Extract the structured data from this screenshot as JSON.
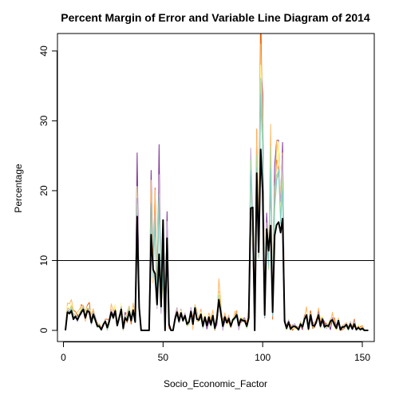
{
  "chart_data": {
    "type": "line",
    "title": "Percent Margin of Error and Variable Line Diagram of 2014",
    "xlabel": "Socio_Economic_Factor",
    "ylabel": "Percentage",
    "xlim": [
      -3,
      156
    ],
    "ylim": [
      -1.6,
      42.5
    ],
    "xticks": [
      0,
      50,
      100,
      150
    ],
    "yticks": [
      0,
      10,
      20,
      30,
      40
    ],
    "grid": false,
    "legend": "none",
    "reference_lines": [
      {
        "y": 10,
        "color": "#000000"
      }
    ],
    "main_color": "#000000",
    "series": [
      {
        "color": "#7B3294",
        "values": [
          0,
          3,
          2.6,
          3.1,
          1.8,
          2.2,
          2,
          2.5,
          2.8,
          3.6,
          2.3,
          3.2,
          2.6,
          1.6,
          2.6,
          1.4,
          0.9,
          0.5,
          0.2,
          0.9,
          1.2,
          0.6,
          1.6,
          2.8,
          2.2,
          3.3,
          0.6,
          2.1,
          2.8,
          0.7,
          2.6,
          1.3,
          2.5,
          1.6,
          3,
          1.1,
          25.4,
          4,
          0,
          0,
          0,
          0,
          0,
          22.9,
          8.3,
          19,
          3.9,
          26.6,
          2.7,
          10.5,
          0,
          17,
          1.1,
          0,
          0,
          2,
          3.2,
          1.1,
          3,
          1.6,
          2.4,
          0.9,
          1.4,
          2.3,
          0.6,
          3.4,
          1.7,
          1.6,
          2.1,
          0.4,
          1.7,
          0.2,
          1.3,
          0.6,
          2.3,
          0.3,
          0.8,
          4,
          2.4,
          0.3,
          1.3,
          1.3,
          1.5,
          0.6,
          1.6,
          1.6,
          2.5,
          1.2,
          1.1,
          1.6,
          1.8,
          0.5,
          2.7,
          24.3,
          12.3,
          0.1,
          23.1,
          10.5,
          38.8,
          33.9,
          1.8,
          16.8,
          9.9,
          23.5,
          3.4,
          23.5,
          27.2,
          27.2,
          17.6,
          26.9,
          1.1,
          0.6,
          1.4,
          0,
          0.8,
          0.5,
          0.5,
          0.5,
          0.7,
          0.1,
          2.2,
          2,
          0.1,
          2.8,
          1.2,
          0.7,
          1,
          2.8,
          0.3,
          1.8,
          1.2,
          0.3,
          1,
          0.1,
          1.8,
          1.1,
          0.8,
          1.3,
          0.4,
          0.6,
          0.3,
          1,
          0.5,
          0.8,
          0.1,
          0.8,
          0.2,
          0.4,
          0.2,
          0.2,
          0,
          0,
          0
        ]
      },
      {
        "color": "#E66101",
        "values": [
          0,
          3.2,
          3.1,
          3.6,
          2.9,
          2.7,
          2.2,
          2.2,
          3.7,
          3.4,
          2.6,
          3.6,
          4,
          1.1,
          2.7,
          2,
          0.6,
          0.9,
          0.3,
          0.6,
          1.6,
          1.6,
          1.4,
          2.7,
          1.6,
          3,
          1.2,
          1.6,
          3.8,
          0,
          1.9,
          1.1,
          2.8,
          0.9,
          3.4,
          1.2,
          18.1,
          3.2,
          0,
          0,
          0,
          0,
          0,
          19.7,
          9.4,
          20.4,
          5,
          20.3,
          3.6,
          10.5,
          0,
          14.2,
          0.3,
          0,
          0,
          1.9,
          3.1,
          1.2,
          2.7,
          1.7,
          2,
          1.3,
          0.9,
          2.8,
          1.9,
          3.2,
          1.3,
          1.3,
          3,
          0.7,
          2.2,
          1.1,
          1.8,
          1.3,
          2.1,
          0,
          2,
          5.5,
          2,
          1.5,
          2.2,
          0.8,
          1.3,
          0.4,
          1.3,
          1.9,
          2.8,
          0.1,
          1.4,
          1.3,
          1.2,
          1.4,
          1.6,
          23.3,
          15.1,
          0.1,
          28.8,
          11.7,
          47,
          25.7,
          3,
          13.4,
          9.5,
          23.4,
          1.6,
          19.9,
          24.4,
          22.9,
          18.5,
          22.5,
          1.6,
          0.5,
          1,
          0.8,
          0,
          0.4,
          0.3,
          0,
          1.2,
          0.3,
          1.7,
          1.8,
          0.3,
          2.8,
          0.3,
          0.4,
          1.7,
          2.1,
          1.3,
          1.3,
          1.1,
          1,
          0.5,
          0.9,
          1.6,
          1.8,
          0.3,
          1.5,
          0,
          0.1,
          0.3,
          1.1,
          0.4,
          0.8,
          0.5,
          1.6,
          0.2,
          0.6,
          0.5,
          0.7,
          0,
          0,
          0
        ]
      },
      {
        "color": "#FDB863",
        "values": [
          0,
          3.9,
          3.8,
          4.4,
          2.8,
          2.6,
          2.6,
          3,
          3.5,
          2.8,
          1.3,
          2.7,
          3.1,
          2.3,
          3.1,
          1.7,
          1.2,
          0.6,
          0.2,
          0.6,
          1.4,
          0.1,
          1.3,
          3.8,
          2.7,
          3.7,
          1.1,
          2.1,
          3.6,
          1,
          2,
          2.6,
          3.5,
          1.8,
          3.9,
          2.2,
          16.9,
          3.1,
          0,
          0,
          0,
          0,
          0,
          21.5,
          6.8,
          20.1,
          3.9,
          21.3,
          3.2,
          6.9,
          0,
          11.9,
          0.9,
          0,
          0,
          1.8,
          3,
          2.2,
          2.2,
          1.7,
          2.3,
          0.6,
          1.1,
          3.1,
          0.1,
          3.7,
          2.8,
          1.6,
          2.9,
          1.1,
          2,
          0.7,
          2.5,
          1.6,
          2.9,
          0.3,
          1.7,
          7.4,
          3.9,
          0.7,
          2.5,
          1.5,
          2.2,
          0.7,
          1.3,
          2.7,
          2.7,
          0.4,
          1.4,
          1.8,
          1.1,
          0.9,
          3.2,
          24,
          12.7,
          0,
          28.7,
          12,
          41,
          30.4,
          2.8,
          14.7,
          9.9,
          29.5,
          3,
          17.1,
          27.2,
          24.8,
          18.5,
          25.4,
          1.2,
          0.2,
          1.1,
          0,
          0.5,
          0.3,
          0.6,
          0.5,
          0.6,
          0.4,
          1.9,
          3.4,
          0,
          2.5,
          0.6,
          1.2,
          1.4,
          3.2,
          1.5,
          2,
          0.4,
          0.8,
          0.7,
          0.8,
          2.6,
          0.8,
          0.1,
          1.8,
          0.2,
          0.7,
          0.9,
          1.1,
          0.3,
          1.3,
          0.4,
          1,
          0.1,
          0.5,
          0.3,
          0.7,
          0,
          0,
          0
        ]
      },
      {
        "color": "#FFFF99",
        "values": [
          0,
          3.5,
          3,
          3.9,
          1.5,
          2.5,
          1.3,
          2.7,
          3.2,
          3.6,
          2.4,
          3.4,
          3,
          1.2,
          2.3,
          1.8,
          0.6,
          0.6,
          0.1,
          1.1,
          1.5,
          0.8,
          1.4,
          2.7,
          1.7,
          3.7,
          0.5,
          2,
          3.9,
          0,
          2.2,
          1.5,
          2.7,
          1.8,
          3.3,
          1.5,
          20.6,
          3.2,
          0,
          0,
          0,
          0,
          0,
          17.3,
          8.5,
          16.5,
          3.2,
          20.8,
          3.4,
          9.4,
          0,
          13.1,
          0.9,
          0,
          0,
          1.2,
          3.1,
          1.2,
          2.9,
          1.6,
          1.9,
          1.1,
          1.6,
          2.5,
          0.9,
          3.4,
          1.3,
          1.6,
          2.6,
          0.7,
          2.4,
          0.6,
          2.1,
          0.5,
          2.3,
          0.5,
          2.3,
          5.4,
          3,
          0.9,
          1.5,
          0.8,
          1.8,
          0.8,
          1.7,
          2,
          2.1,
          1.2,
          2,
          1.5,
          1.4,
          0.3,
          1.4,
          22.1,
          14.1,
          0,
          21,
          12.3,
          38,
          28.7,
          2.2,
          14.1,
          8.9,
          25.3,
          2.1,
          16.9,
          21.2,
          27,
          16.9,
          22.6,
          1.5,
          0,
          1.6,
          0,
          0.7,
          0.2,
          0.2,
          0,
          1.1,
          0.5,
          1.8,
          2.5,
          0.3,
          2.3,
          0.7,
          0.5,
          1.2,
          1.9,
          0.2,
          2.1,
          0.4,
          0.4,
          1,
          1.8,
          1.6,
          0.4,
          0,
          1.6,
          0.3,
          0.6,
          0.4,
          0.7,
          0.5,
          1.2,
          0.1,
          0.9,
          0.1,
          0.9,
          0.2,
          0.1,
          0,
          0,
          0
        ]
      },
      {
        "color": "#C2A5CF",
        "values": [
          0,
          2.8,
          3,
          3.1,
          2.4,
          2.2,
          1.2,
          2.1,
          2.3,
          3.5,
          1.8,
          2.9,
          2.3,
          1.6,
          2.6,
          2,
          0.7,
          0.5,
          0.4,
          0.6,
          1.5,
          0,
          1.8,
          3,
          1.7,
          2.9,
          0.6,
          1.8,
          3.4,
          0.4,
          1.5,
          1.5,
          2.8,
          1.5,
          2.8,
          1.2,
          18.9,
          3.2,
          0,
          0,
          0,
          0,
          0,
          17.4,
          7.9,
          16.7,
          3.1,
          22.3,
          2.4,
          10,
          0,
          15.6,
          0.9,
          0,
          0,
          1.9,
          3,
          1.8,
          2.5,
          1.6,
          2.5,
          0.8,
          1.1,
          3.3,
          1.3,
          2.9,
          1.5,
          1.7,
          2.1,
          0.6,
          1.8,
          0.8,
          1.7,
          0.6,
          2,
          0.5,
          1.5,
          4.4,
          2.8,
          0,
          2.1,
          1.1,
          2,
          0.5,
          1.5,
          1.9,
          1.9,
          0.1,
          1.7,
          1.2,
          1.7,
          0.7,
          2.4,
          26.1,
          15.8,
          0,
          23.2,
          12.5,
          33.2,
          26.3,
          2.6,
          15.4,
          9,
          23.8,
          2,
          19.9,
          21.7,
          22.3,
          18.4,
          25.1,
          1.8,
          0.1,
          1.5,
          0.3,
          0.5,
          1,
          0.5,
          0,
          0.9,
          0.7,
          1.6,
          2.3,
          0.3,
          1.9,
          0.9,
          0.5,
          1.2,
          2.4,
          0.4,
          1.7,
          0.3,
          0.9,
          0.5,
          1.6,
          1.7,
          0.6,
          0.6,
          1.5,
          0.4,
          0.3,
          0.7,
          1,
          0.1,
          1.2,
          0.1,
          1.4,
          0,
          0.3,
          0.2,
          0.2,
          0,
          0,
          0
        ]
      },
      {
        "color": "#A6DBA0",
        "values": [
          0,
          2.9,
          2.5,
          3.5,
          2.1,
          1.8,
          1.5,
          2.3,
          3,
          3.1,
          1.9,
          3.1,
          3.2,
          0.8,
          2,
          1.2,
          0.4,
          0.5,
          0,
          0.9,
          1.2,
          0,
          0.8,
          2.8,
          1.6,
          2.5,
          1,
          2.1,
          2.7,
          0,
          2.1,
          1.8,
          3.3,
          1.7,
          2.9,
          1.1,
          18.1,
          3.6,
          0,
          0,
          0,
          0,
          0,
          17.5,
          8.4,
          15.5,
          4.3,
          19.5,
          4.3,
          8.4,
          0,
          12.6,
          0.8,
          0,
          0,
          1.3,
          2.3,
          1.2,
          2.5,
          1.2,
          1.9,
          0.7,
          0.8,
          2.7,
          1.1,
          3.5,
          1.7,
          1.3,
          1.8,
          0.3,
          1.9,
          0.6,
          1.8,
          0.5,
          2.2,
          0.1,
          1.5,
          5.1,
          2.9,
          1.1,
          1.8,
          1.3,
          1.7,
          0.5,
          1.3,
          1.5,
          2.4,
          0.9,
          1.8,
          1.5,
          1.5,
          0.3,
          1.5,
          24.4,
          13.2,
          0,
          25.1,
          10.3,
          36.1,
          28.5,
          1.9,
          14.1,
          8.7,
          26.3,
          2.4,
          20.6,
          22.3,
          22.6,
          16.2,
          21.5,
          1.2,
          0.1,
          1.2,
          0,
          0.4,
          0.7,
          0.4,
          0,
          1.1,
          0.4,
          1.6,
          2,
          0.2,
          2.1,
          0.5,
          0.7,
          1.4,
          2,
          0.6,
          1.9,
          0.5,
          0.8,
          0.4,
          1.4,
          1.2,
          0.9,
          0.4,
          1.4,
          0.1,
          0.6,
          0.6,
          0.6,
          0,
          0.9,
          0.3,
          1.1,
          0,
          0.4,
          0.1,
          0.1,
          0,
          0,
          0
        ]
      },
      {
        "color": "#80CDC1",
        "values": [
          0,
          2.8,
          2.5,
          3.1,
          1.5,
          2.1,
          1.4,
          2.3,
          2.7,
          2.9,
          1.7,
          2.6,
          2.8,
          1,
          2.6,
          1.6,
          0.7,
          0.8,
          0,
          1,
          1.2,
          0.3,
          1.4,
          2.5,
          1.9,
          2.7,
          0.8,
          1.8,
          3.1,
          0.3,
          1.6,
          1.4,
          2.7,
          1.3,
          2.6,
          1.4,
          16.7,
          3.7,
          0,
          0,
          0,
          0,
          0,
          18.2,
          7.5,
          15.6,
          3.6,
          19.1,
          3.1,
          8,
          0,
          12.8,
          0.8,
          0,
          0,
          1.5,
          2.4,
          1.4,
          2.3,
          1.3,
          2.2,
          1,
          1.1,
          2.8,
          0.9,
          3.3,
          1.6,
          1.6,
          2.2,
          0.8,
          1.6,
          0.9,
          2,
          0.7,
          2,
          0.2,
          1.6,
          4.2,
          2.2,
          0.6,
          1.9,
          1.3,
          1.6,
          0.6,
          1.4,
          1.6,
          2,
          0.6,
          1.6,
          1.4,
          1.5,
          0.6,
          1.8,
          22.9,
          14.9,
          0,
          23.3,
          11.3,
          33.8,
          26.2,
          2,
          13.6,
          9.3,
          23.1,
          2.1,
          17.4,
          21.3,
          23.1,
          15.3,
          20.1,
          1.2,
          0.4,
          1,
          0.2,
          0.6,
          0.5,
          0.4,
          0,
          0.8,
          0.6,
          1.5,
          1.9,
          0.2,
          2.2,
          0.6,
          0.6,
          1.3,
          2,
          0.5,
          1.7,
          0.3,
          0.8,
          0.5,
          1.3,
          1.3,
          0.8,
          0.3,
          1.3,
          0.1,
          0.5,
          0.5,
          0.7,
          0.2,
          1,
          0.3,
          0.8,
          0.1,
          0.5,
          0.1,
          0.3,
          0,
          0,
          0
        ]
      },
      {
        "color": "#000000",
        "main": true,
        "values": [
          0,
          2.6,
          2.4,
          2.8,
          1.6,
          2,
          1.5,
          2.1,
          2.6,
          3,
          1.8,
          2.8,
          2.6,
          1.1,
          2.3,
          1.5,
          0.6,
          0.6,
          0.1,
          0.8,
          1.3,
          0.4,
          1.3,
          2.6,
          1.8,
          2.8,
          0.7,
          1.8,
          3,
          0.3,
          1.8,
          1.4,
          2.7,
          1.4,
          2.9,
          1.2,
          16.3,
          3.3,
          0,
          0,
          0,
          0,
          0,
          13.7,
          8.7,
          8.1,
          3.7,
          10.9,
          3.4,
          15.8,
          0,
          13.2,
          0.8,
          0,
          0,
          1.6,
          2.6,
          1.3,
          2.5,
          1.4,
          2.1,
          0.9,
          1.2,
          2.7,
          0.9,
          3.2,
          1.6,
          1.5,
          2.3,
          0.6,
          1.9,
          0.7,
          1.9,
          0.8,
          2.1,
          0.3,
          1.7,
          4.4,
          2.5,
          0.6,
          1.9,
          1.1,
          1.7,
          0.6,
          1.5,
          1.8,
          2.2,
          0.7,
          1.6,
          1.4,
          1.4,
          0.6,
          1.8,
          17.5,
          17.6,
          0,
          22.5,
          11.2,
          25.9,
          19.8,
          2.2,
          14.5,
          11.4,
          15,
          2.6,
          13.6,
          15.1,
          15.5,
          14,
          16,
          1.3,
          0.3,
          1.2,
          0.2,
          0.5,
          0.6,
          0.4,
          0.1,
          0.9,
          0.5,
          1.6,
          2.2,
          0.2,
          2.2,
          0.7,
          0.6,
          1.3,
          2.2,
          0.6,
          1.6,
          0.5,
          0.7,
          0.6,
          1.3,
          1.5,
          0.8,
          0.3,
          1.4,
          0.1,
          0.5,
          0.5,
          0.8,
          0.2,
          0.9,
          0.2,
          0.9,
          0.1,
          0.4,
          0.1,
          0.3,
          0,
          0,
          0
        ]
      }
    ]
  }
}
